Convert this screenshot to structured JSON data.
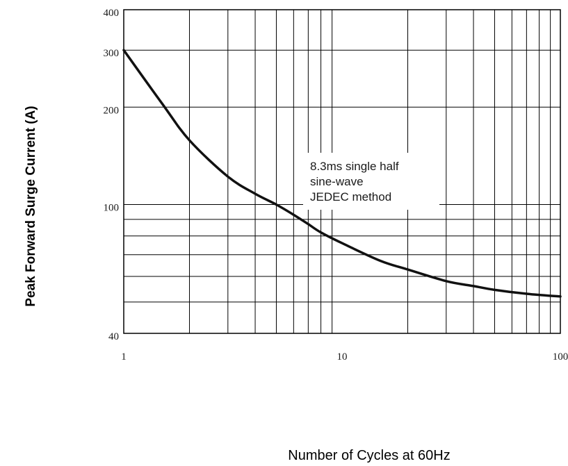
{
  "chart_data": {
    "type": "line",
    "xlabel": "Number of Cycles at 60Hz",
    "ylabel": "Peak Forward Surge Current (A)",
    "x_scale": "log",
    "y_scale": "log",
    "xlim": [
      1,
      100
    ],
    "ylim": [
      40,
      400
    ],
    "x_ticks": [
      1,
      10,
      100
    ],
    "x_tick_labels": [
      "1",
      "10",
      "100"
    ],
    "y_ticks": [
      40,
      100,
      200,
      300,
      400
    ],
    "y_tick_labels": [
      "40",
      "100",
      "200",
      "300",
      "400"
    ],
    "grid": true,
    "annotation": [
      "8.3ms single half",
      "sine-wave",
      "JEDEC method"
    ],
    "series": [
      {
        "x": [
          1,
          1.5,
          2,
          3,
          4,
          5,
          6,
          7,
          8,
          10,
          15,
          20,
          30,
          40,
          50,
          70,
          100
        ],
        "y": [
          300,
          205,
          158,
          122,
          108,
          100,
          93,
          87,
          82,
          76,
          67,
          63,
          58,
          56,
          54.5,
          53,
          52
        ]
      }
    ]
  }
}
